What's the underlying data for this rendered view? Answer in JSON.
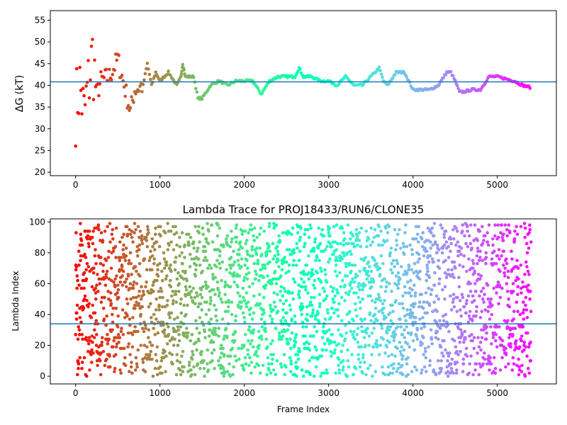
{
  "chart_data": [
    {
      "type": "scatter",
      "title": "",
      "xlabel": "",
      "ylabel": "ΔG (kT)",
      "xlim": [
        -300,
        5700
      ],
      "ylim": [
        19.2,
        57.2
      ],
      "xticks": [
        0,
        1000,
        2000,
        3000,
        4000,
        5000
      ],
      "yticks": [
        20,
        25,
        30,
        35,
        40,
        45,
        50,
        55
      ],
      "hline": 40.8,
      "hline_color": "#1f77b4",
      "colormap": "rainbow_reversed",
      "grid": false,
      "series": [
        {
          "x": [
            0,
            50,
            100,
            150,
            200,
            250,
            300,
            400,
            500,
            600,
            650,
            700,
            800,
            850,
            900,
            950,
            1000,
            1100,
            1200,
            1250,
            1270,
            1300,
            1400,
            1450,
            1500,
            1600,
            1700,
            1800,
            1900,
            2000,
            2100,
            2200,
            2300,
            2400,
            2500,
            2600,
            2650,
            2700,
            2800,
            2900,
            3000,
            3100,
            3200,
            3300,
            3400,
            3500,
            3600,
            3650,
            3700,
            3800,
            3900,
            4000,
            4100,
            4200,
            4300,
            4400,
            4450,
            4500,
            4550,
            4600,
            4700,
            4800,
            4900,
            5000,
            5100,
            5200,
            5300,
            5400
          ],
          "y": [
            35,
            40,
            33,
            40,
            47,
            38,
            41,
            42,
            46,
            38,
            34,
            39,
            40,
            45,
            40,
            43,
            41,
            43,
            40,
            42,
            45,
            42,
            42,
            37,
            37,
            40,
            41,
            40,
            41,
            41,
            41,
            38,
            41,
            42,
            42,
            42,
            44,
            42,
            42,
            41,
            41,
            40,
            42,
            40,
            40,
            42,
            44,
            41,
            40,
            43,
            43,
            39,
            39,
            39,
            40,
            43,
            43,
            41,
            38.5,
            38.5,
            39,
            39,
            42,
            42,
            41.5,
            41,
            40,
            39.5
          ]
        }
      ]
    },
    {
      "type": "scatter",
      "title": "Lambda Trace for PROJ18433/RUN6/CLONE35",
      "xlabel": "Frame Index",
      "ylabel": "Lambda Index",
      "xlim": [
        -300,
        5700
      ],
      "ylim": [
        -5,
        102
      ],
      "xticks": [
        0,
        1000,
        2000,
        3000,
        4000,
        5000
      ],
      "yticks": [
        0,
        20,
        40,
        60,
        80,
        100
      ],
      "hline": 34,
      "hline_color": "#1f77b4",
      "colormap": "rainbow_reversed",
      "grid": false,
      "value_range": [
        0,
        99
      ],
      "frame_range": [
        0,
        5400
      ]
    }
  ]
}
